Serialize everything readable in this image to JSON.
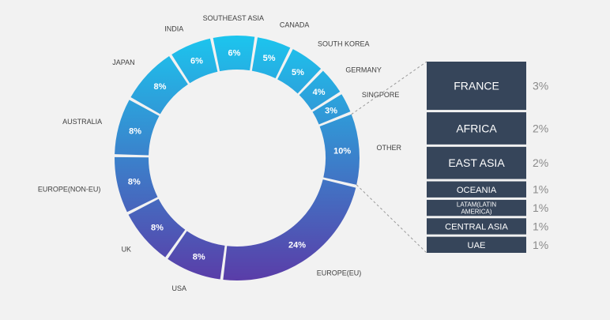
{
  "colors": {
    "background": "#f2f2f2",
    "gradient_start": "#1cc5ee",
    "gradient_end": "#5a3da8",
    "box_fill": "#36455a",
    "box_text": "#ffffff",
    "pct_text": "#8a8a8a",
    "label_text": "#404040",
    "connector": "#9a9a9a"
  },
  "chart_data": {
    "type": "pie",
    "variant": "donut",
    "slices": [
      {
        "label": "SOUTHEAST ASIA",
        "value": 6,
        "value_label": "6%"
      },
      {
        "label": "CANADA",
        "value": 5,
        "value_label": "5%"
      },
      {
        "label": "SOUTH KOREA",
        "value": 5,
        "value_label": "5%"
      },
      {
        "label": "GERMANY",
        "value": 4,
        "value_label": "4%"
      },
      {
        "label": "SINGPORE",
        "value": 3,
        "value_label": "3%"
      },
      {
        "label": "OTHER",
        "value": 10,
        "value_label": "10%"
      },
      {
        "label": "EUROPE(EU)",
        "value": 24,
        "value_label": "24%"
      },
      {
        "label": "USA",
        "value": 8,
        "value_label": "8%"
      },
      {
        "label": "UK",
        "value": 8,
        "value_label": "8%"
      },
      {
        "label": "EUROPE(NON-EU)",
        "value": 8,
        "value_label": "8%"
      },
      {
        "label": "AUSTRALIA",
        "value": 8,
        "value_label": "8%"
      },
      {
        "label": "JAPAN",
        "value": 8,
        "value_label": "8%"
      },
      {
        "label": "INDIA",
        "value": 6,
        "value_label": "6%"
      }
    ],
    "breakdown_of": "OTHER",
    "breakdown": [
      {
        "label": "FRANCE",
        "value": 3,
        "value_label": "3%"
      },
      {
        "label": "AFRICA",
        "value": 2,
        "value_label": "2%"
      },
      {
        "label": "EAST ASIA",
        "value": 2,
        "value_label": "2%"
      },
      {
        "label": "OCEANIA",
        "value": 1,
        "value_label": "1%"
      },
      {
        "label": "LATAM(LATIN AMERICA)",
        "label_lines": [
          "LATAM(LATIN",
          "AMERICA)"
        ],
        "value": 1,
        "value_label": "1%"
      },
      {
        "label": "CENTRAL ASIA",
        "value": 1,
        "value_label": "1%"
      },
      {
        "label": "UAE",
        "value": 1,
        "value_label": "1%"
      }
    ]
  }
}
